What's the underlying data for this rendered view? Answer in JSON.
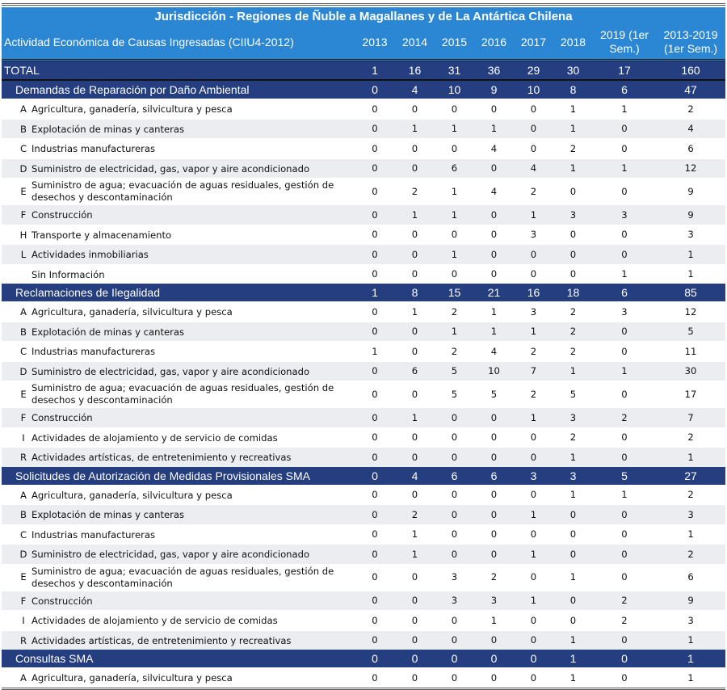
{
  "title": "Jurisdicción - Regiones de Ñuble a Magallanes y de La Antártica Chilena",
  "header": {
    "label": "Actividad Económica de Causas Ingresadas (CIIU4-2012)",
    "columns": [
      "2013",
      "2014",
      "2015",
      "2016",
      "2017",
      "2018",
      "2019 (1er Sem.)",
      "2013-2019 (1er Sem.)"
    ]
  },
  "total": {
    "label": "TOTAL",
    "values": [
      "1",
      "16",
      "31",
      "36",
      "29",
      "30",
      "17",
      "160"
    ]
  },
  "colors": {
    "header_blue": "#2b87d3",
    "section_navy": "#243e7f",
    "stripe": "#ebedf1"
  },
  "sections": [
    {
      "label": "Demandas de Reparación por Daño Ambiental",
      "values": [
        "0",
        "4",
        "10",
        "9",
        "10",
        "8",
        "6",
        "47"
      ],
      "rows": [
        {
          "code": "A",
          "label": "Agricultura, ganadería, silvicultura y pesca",
          "values": [
            "0",
            "0",
            "0",
            "0",
            "0",
            "1",
            "1",
            "2"
          ]
        },
        {
          "code": "B",
          "label": "Explotación de minas y canteras",
          "values": [
            "0",
            "1",
            "1",
            "1",
            "0",
            "1",
            "0",
            "4"
          ]
        },
        {
          "code": "C",
          "label": "Industrias manufactureras",
          "values": [
            "0",
            "0",
            "0",
            "4",
            "0",
            "2",
            "0",
            "6"
          ]
        },
        {
          "code": "D",
          "label": "Suministro de electricidad, gas, vapor y aire acondicionado",
          "values": [
            "0",
            "0",
            "6",
            "0",
            "4",
            "1",
            "1",
            "12"
          ]
        },
        {
          "code": "E",
          "label": "Suministro de agua; evacuación de aguas residuales, gestión de desechos y descontaminación",
          "values": [
            "0",
            "2",
            "1",
            "4",
            "2",
            "0",
            "0",
            "9"
          ]
        },
        {
          "code": "F",
          "label": "Construcción",
          "values": [
            "0",
            "1",
            "1",
            "0",
            "1",
            "3",
            "3",
            "9"
          ]
        },
        {
          "code": "H",
          "label": "Transporte y almacenamiento",
          "values": [
            "0",
            "0",
            "0",
            "0",
            "3",
            "0",
            "0",
            "3"
          ]
        },
        {
          "code": "L",
          "label": "Actividades inmobiliarias",
          "values": [
            "0",
            "0",
            "1",
            "0",
            "0",
            "0",
            "0",
            "1"
          ]
        },
        {
          "code": "",
          "label": "Sin Información",
          "values": [
            "0",
            "0",
            "0",
            "0",
            "0",
            "0",
            "1",
            "1"
          ]
        }
      ]
    },
    {
      "label": "Reclamaciones de Ilegalidad",
      "values": [
        "1",
        "8",
        "15",
        "21",
        "16",
        "18",
        "6",
        "85"
      ],
      "rows": [
        {
          "code": "A",
          "label": "Agricultura, ganadería, silvicultura y pesca",
          "values": [
            "0",
            "1",
            "2",
            "1",
            "3",
            "2",
            "3",
            "12"
          ]
        },
        {
          "code": "B",
          "label": "Explotación de minas y canteras",
          "values": [
            "0",
            "0",
            "1",
            "1",
            "1",
            "2",
            "0",
            "5"
          ]
        },
        {
          "code": "C",
          "label": "Industrias manufactureras",
          "values": [
            "1",
            "0",
            "2",
            "4",
            "2",
            "2",
            "0",
            "11"
          ]
        },
        {
          "code": "D",
          "label": "Suministro de electricidad, gas, vapor y aire acondicionado",
          "values": [
            "0",
            "6",
            "5",
            "10",
            "7",
            "1",
            "1",
            "30"
          ]
        },
        {
          "code": "E",
          "label": "Suministro de agua; evacuación de aguas residuales, gestión de desechos y descontaminación",
          "values": [
            "0",
            "0",
            "5",
            "5",
            "2",
            "5",
            "0",
            "17"
          ]
        },
        {
          "code": "F",
          "label": "Construcción",
          "values": [
            "0",
            "1",
            "0",
            "0",
            "1",
            "3",
            "2",
            "7"
          ]
        },
        {
          "code": "I",
          "label": "Actividades de alojamiento y de servicio de comidas",
          "values": [
            "0",
            "0",
            "0",
            "0",
            "0",
            "2",
            "0",
            "2"
          ]
        },
        {
          "code": "R",
          "label": "Actividades artísticas, de entretenimiento y recreativas",
          "values": [
            "0",
            "0",
            "0",
            "0",
            "0",
            "1",
            "0",
            "1"
          ]
        }
      ]
    },
    {
      "label": "Solicitudes de Autorización de Medidas Provisionales SMA",
      "values": [
        "0",
        "4",
        "6",
        "6",
        "3",
        "3",
        "5",
        "27"
      ],
      "rows": [
        {
          "code": "A",
          "label": "Agricultura, ganadería, silvicultura y pesca",
          "values": [
            "0",
            "0",
            "0",
            "0",
            "0",
            "1",
            "1",
            "2"
          ]
        },
        {
          "code": "B",
          "label": "Explotación de minas y canteras",
          "values": [
            "0",
            "2",
            "0",
            "0",
            "1",
            "0",
            "0",
            "3"
          ]
        },
        {
          "code": "C",
          "label": "Industrias manufactureras",
          "values": [
            "0",
            "1",
            "0",
            "0",
            "0",
            "0",
            "0",
            "1"
          ]
        },
        {
          "code": "D",
          "label": "Suministro de electricidad, gas, vapor y aire acondicionado",
          "values": [
            "0",
            "1",
            "0",
            "0",
            "1",
            "0",
            "0",
            "2"
          ]
        },
        {
          "code": "E",
          "label": "Suministro de agua; evacuación de aguas residuales, gestión de desechos y descontaminación",
          "values": [
            "0",
            "0",
            "3",
            "2",
            "0",
            "1",
            "0",
            "6"
          ]
        },
        {
          "code": "F",
          "label": "Construcción",
          "values": [
            "0",
            "0",
            "3",
            "3",
            "1",
            "0",
            "2",
            "9"
          ]
        },
        {
          "code": "I",
          "label": "Actividades de alojamiento y de servicio de comidas",
          "values": [
            "0",
            "0",
            "0",
            "1",
            "0",
            "0",
            "2",
            "3"
          ]
        },
        {
          "code": "R",
          "label": "Actividades artísticas, de entretenimiento y recreativas",
          "values": [
            "0",
            "0",
            "0",
            "0",
            "0",
            "1",
            "0",
            "1"
          ]
        }
      ]
    },
    {
      "label": "Consultas SMA",
      "values": [
        "0",
        "0",
        "0",
        "0",
        "0",
        "1",
        "0",
        "1"
      ],
      "rows": [
        {
          "code": "A",
          "label": "Agricultura, ganadería, silvicultura y pesca",
          "values": [
            "0",
            "0",
            "0",
            "0",
            "0",
            "1",
            "0",
            "1"
          ]
        }
      ]
    }
  ]
}
